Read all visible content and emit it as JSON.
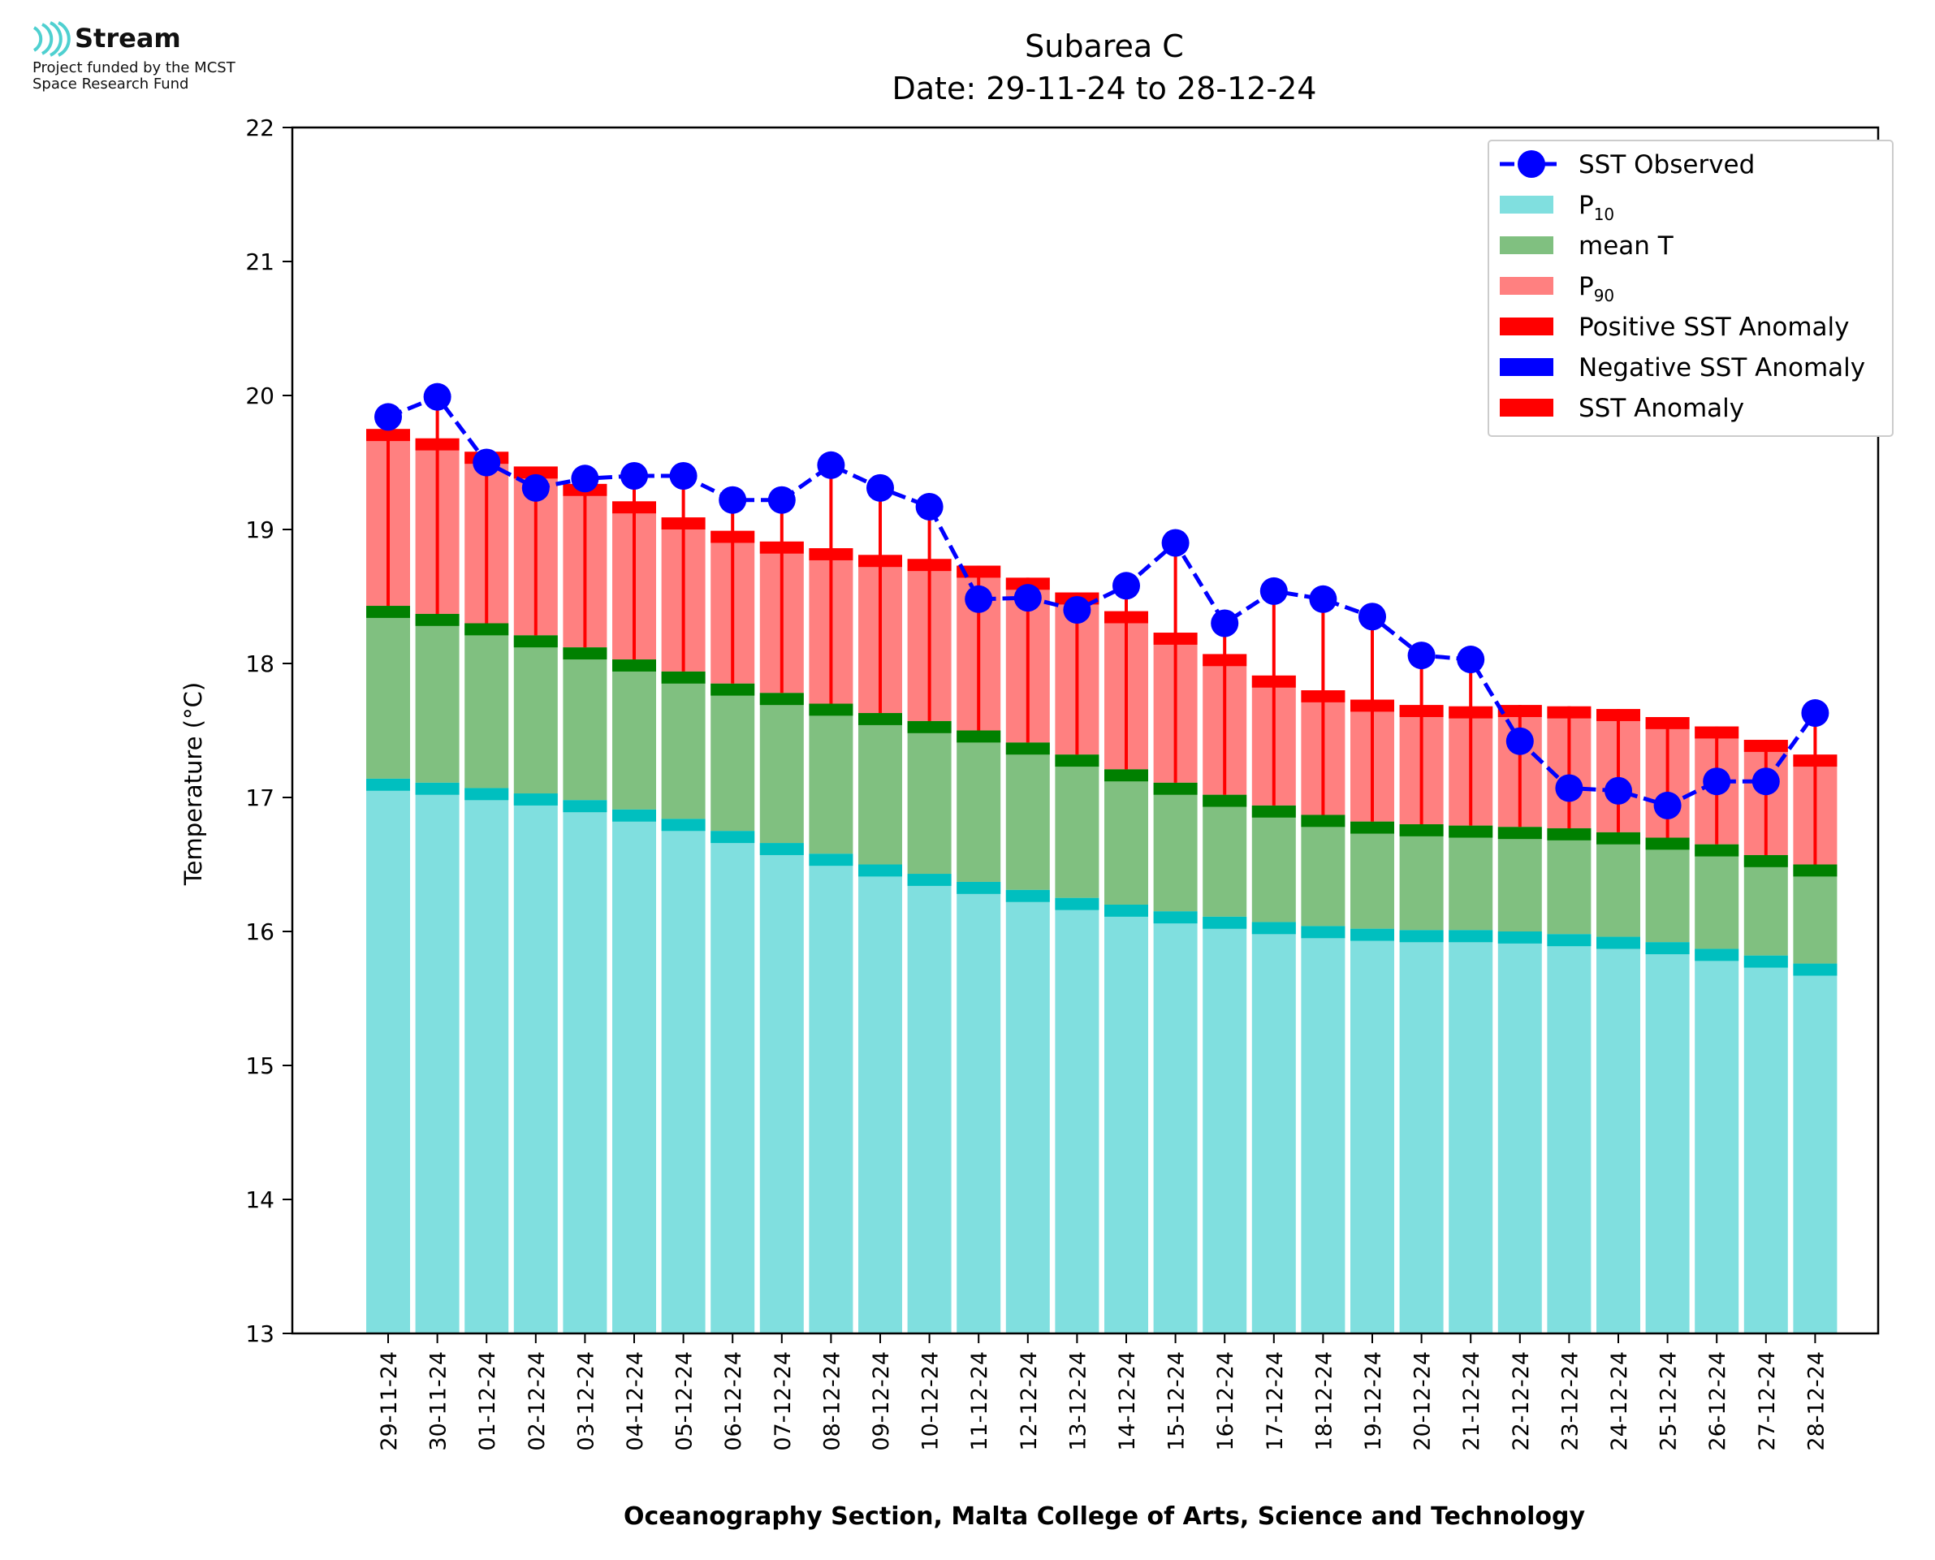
{
  "logo": {
    "name": "Stream",
    "funded_line1": "Project funded by the MCST",
    "funded_line2": "Space Research Fund"
  },
  "chart_data": {
    "type": "bar",
    "title": "Subarea C",
    "subtitle": "Date: 29-11-24 to 28-12-24",
    "xlabel": "Oceanography Section, Malta College of Arts, Science and Technology",
    "ylabel": "Temperature (°C)",
    "ylim": [
      13,
      22
    ],
    "yticks": [
      13,
      14,
      15,
      16,
      17,
      18,
      19,
      20,
      21,
      22
    ],
    "legend_position": "top-right",
    "categories": [
      "29-11-24",
      "30-11-24",
      "01-12-24",
      "02-12-24",
      "03-12-24",
      "04-12-24",
      "05-12-24",
      "06-12-24",
      "07-12-24",
      "08-12-24",
      "09-12-24",
      "10-12-24",
      "11-12-24",
      "12-12-24",
      "13-12-24",
      "14-12-24",
      "15-12-24",
      "16-12-24",
      "17-12-24",
      "18-12-24",
      "19-12-24",
      "20-12-24",
      "21-12-24",
      "22-12-24",
      "23-12-24",
      "24-12-24",
      "25-12-24",
      "26-12-24",
      "27-12-24",
      "28-12-24"
    ],
    "series": [
      {
        "name": "P10",
        "label_base": "P",
        "label_sub": "10",
        "color": "#80dfdf",
        "edge": "#00bfbf",
        "values": [
          17.14,
          17.11,
          17.07,
          17.03,
          16.98,
          16.91,
          16.84,
          16.75,
          16.66,
          16.58,
          16.5,
          16.43,
          16.37,
          16.31,
          16.25,
          16.2,
          16.15,
          16.11,
          16.07,
          16.04,
          16.02,
          16.01,
          16.01,
          16.0,
          15.98,
          15.96,
          15.92,
          15.87,
          15.82,
          15.76
        ]
      },
      {
        "name": "mean T",
        "color": "#80c080",
        "edge": "#008000",
        "values": [
          18.43,
          18.37,
          18.3,
          18.21,
          18.12,
          18.03,
          17.94,
          17.85,
          17.78,
          17.7,
          17.63,
          17.57,
          17.5,
          17.41,
          17.32,
          17.21,
          17.11,
          17.02,
          16.94,
          16.87,
          16.82,
          16.8,
          16.79,
          16.78,
          16.77,
          16.74,
          16.7,
          16.65,
          16.57,
          16.5
        ]
      },
      {
        "name": "P90",
        "label_base": "P",
        "label_sub": "90",
        "color": "#ff8080",
        "edge": "#ff0000",
        "values": [
          19.75,
          19.68,
          19.58,
          19.47,
          19.34,
          19.21,
          19.09,
          18.99,
          18.91,
          18.86,
          18.81,
          18.78,
          18.73,
          18.64,
          18.53,
          18.39,
          18.23,
          18.07,
          17.91,
          17.8,
          17.73,
          17.69,
          17.68,
          17.69,
          17.68,
          17.66,
          17.6,
          17.53,
          17.43,
          17.32
        ]
      },
      {
        "name": "SST Observed",
        "color": "#0000ff",
        "values": [
          19.84,
          19.99,
          19.5,
          19.31,
          19.38,
          19.4,
          19.4,
          19.22,
          19.22,
          19.48,
          19.31,
          19.17,
          18.48,
          18.49,
          18.4,
          18.58,
          18.9,
          18.3,
          18.54,
          18.48,
          18.35,
          18.06,
          18.03,
          17.42,
          17.07,
          17.05,
          16.94,
          17.12,
          17.12,
          17.63
        ]
      }
    ],
    "legend": [
      {
        "label": "SST Observed",
        "kind": "line-marker",
        "color": "#0000ff"
      },
      {
        "label": "P",
        "sub": "10",
        "kind": "patch",
        "color": "#80dfdf"
      },
      {
        "label": "mean T",
        "kind": "patch",
        "color": "#80c080"
      },
      {
        "label": "P",
        "sub": "90",
        "kind": "patch",
        "color": "#ff8080"
      },
      {
        "label": "Positive SST Anomaly",
        "kind": "patch",
        "color": "#ff0000"
      },
      {
        "label": "Negative SST Anomaly",
        "kind": "patch",
        "color": "#0000ff"
      },
      {
        "label": "SST Anomaly",
        "kind": "patch",
        "color": "#ff0000"
      }
    ],
    "anomaly_color": "#ff0000"
  }
}
